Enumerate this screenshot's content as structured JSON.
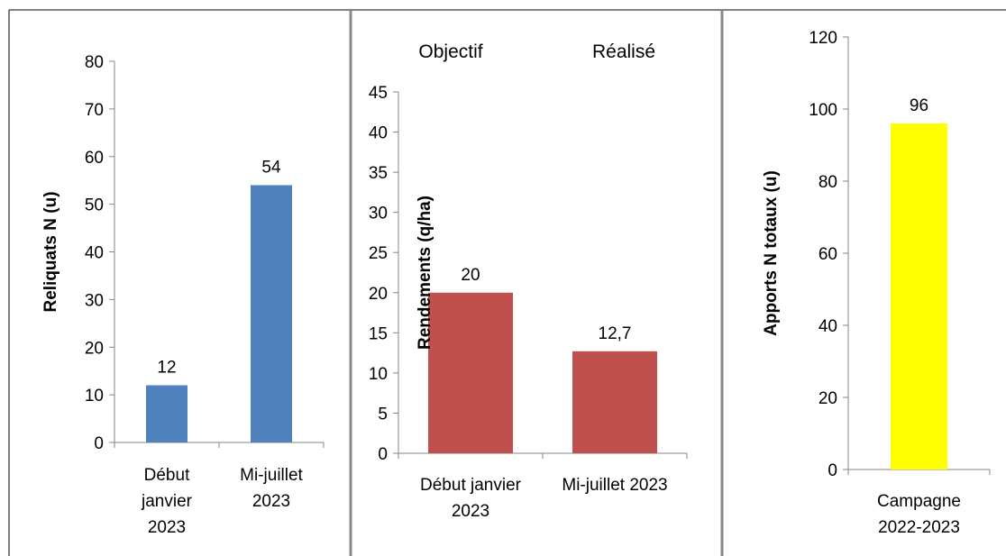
{
  "chart_data": [
    {
      "type": "bar",
      "ylabel": "Reliquats N (u)",
      "ylim": [
        0,
        80
      ],
      "y_ticks": [
        0,
        10,
        20,
        30,
        40,
        50,
        60,
        70,
        80
      ],
      "categories": [
        [
          "Début",
          "janvier",
          "2023"
        ],
        [
          "Mi-juillet",
          "2023"
        ]
      ],
      "values": [
        12,
        54
      ],
      "data_labels": [
        "12",
        "54"
      ],
      "color": "#4F81BD"
    },
    {
      "type": "bar",
      "ylabel": "Rendements (q/ha)",
      "ylim": [
        0,
        45
      ],
      "y_ticks": [
        0,
        5,
        10,
        15,
        20,
        25,
        30,
        35,
        40,
        45
      ],
      "categories": [
        [
          "Début janvier",
          "2023"
        ],
        [
          "Mi-juillet 2023"
        ]
      ],
      "values": [
        20,
        12.7
      ],
      "data_labels": [
        "20",
        "12,7"
      ],
      "top_labels": [
        "Objectif",
        "Réalisé"
      ],
      "color": "#C0504D"
    },
    {
      "type": "bar",
      "ylabel": "Apports N totaux (u)",
      "ylim": [
        0,
        120
      ],
      "y_ticks": [
        0,
        20,
        40,
        60,
        80,
        100,
        120
      ],
      "categories": [
        [
          "Campagne",
          "2022-2023"
        ]
      ],
      "values": [
        96
      ],
      "data_labels": [
        "96"
      ],
      "color": "#FFFF00"
    }
  ]
}
